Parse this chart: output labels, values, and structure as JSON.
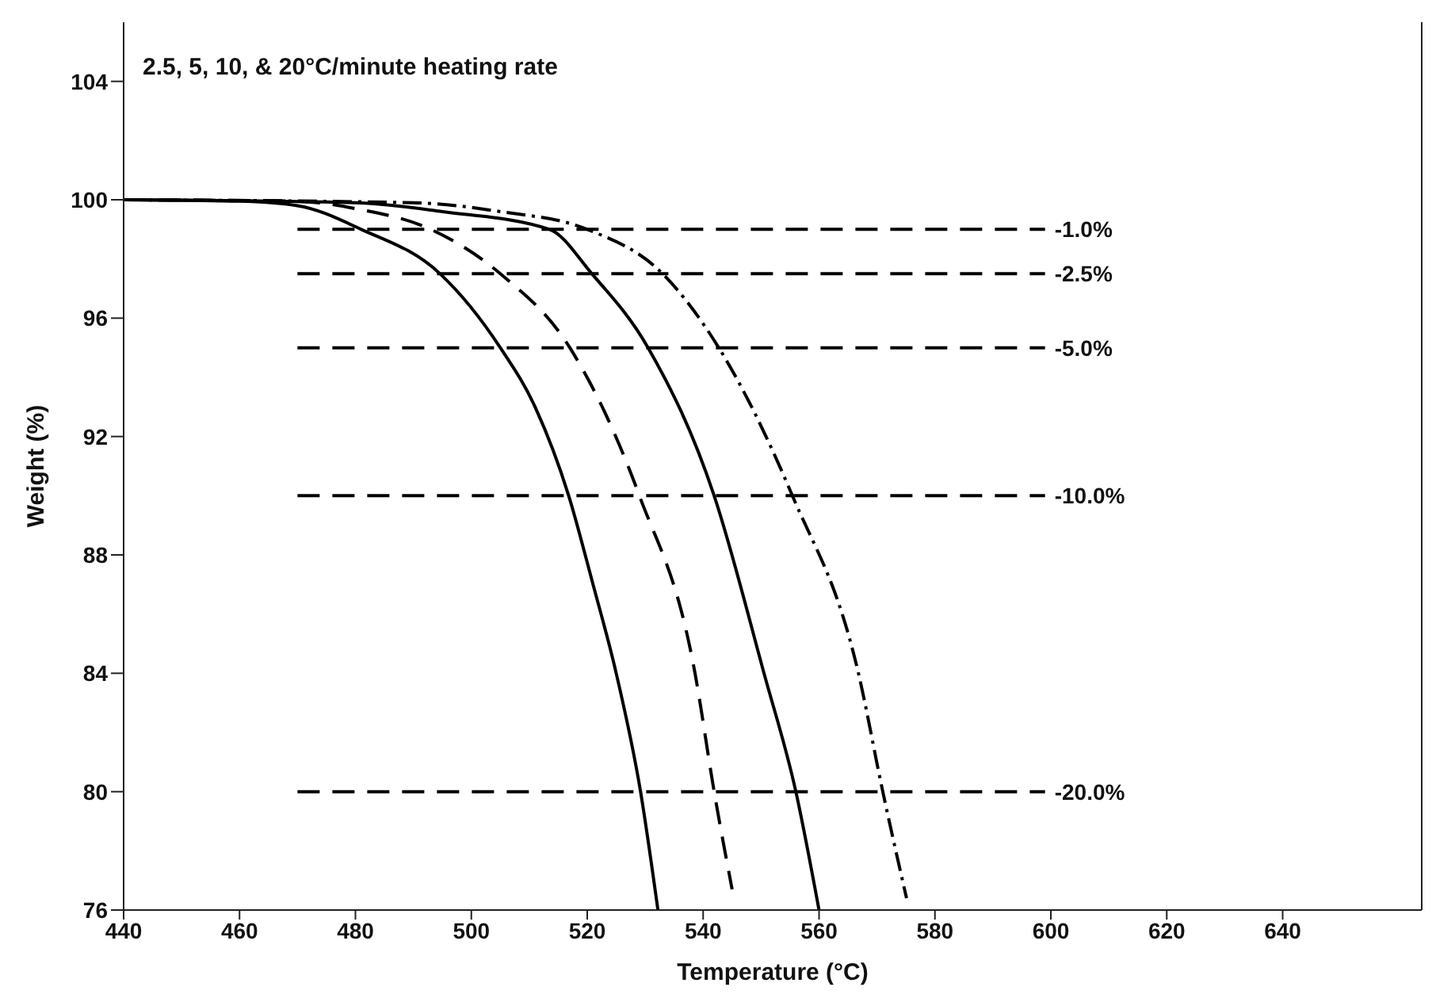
{
  "chart_data": {
    "type": "line",
    "title": "2.5, 5, 10, & 20°C/minute heating rate",
    "xlabel": "Temperature (°C)",
    "ylabel": "Weight (%)",
    "xlim": [
      440,
      664
    ],
    "xticks": [
      440,
      460,
      480,
      500,
      520,
      540,
      560,
      580,
      600,
      620,
      640
    ],
    "ylim": [
      76,
      106
    ],
    "yticks": [
      76,
      80,
      84,
      88,
      92,
      96,
      100,
      104
    ],
    "grid": false,
    "legend": false,
    "marker": "none",
    "series": [
      {
        "color": "#000000",
        "line_style": "solid",
        "x": [
          440,
          460,
          470,
          481,
          494.6,
          505,
          511,
          516.8,
          521,
          525,
          529.2,
          532.2
        ],
        "values": [
          100,
          99.95,
          99.8,
          99,
          97.5,
          95,
          93,
          90,
          87,
          84,
          80,
          76
        ]
      },
      {
        "color": "#000000",
        "line_style": "dashed",
        "x": [
          440,
          470,
          480,
          493,
          505,
          517,
          529,
          538.6,
          541.9,
          545
        ],
        "values": [
          100,
          99.95,
          99.7,
          99,
          97.5,
          95,
          90,
          84,
          80,
          76.7
        ]
      },
      {
        "color": "#000000",
        "line_style": "solid",
        "x": [
          440,
          480,
          495,
          513.5,
          520.8,
          530.5,
          541.9,
          550.5,
          556,
          560
        ],
        "values": [
          100,
          99.9,
          99.6,
          99,
          97.5,
          95,
          90,
          84,
          80,
          76
        ]
      },
      {
        "color": "#000000",
        "line_style": "dotted",
        "x": [
          440,
          490,
          505,
          520,
          533,
          542.7,
          555.4,
          566.8,
          571,
          575.1
        ],
        "values": [
          100,
          99.9,
          99.6,
          99,
          97.5,
          95,
          90,
          84,
          80,
          76.4
        ]
      },
      {
        "name": "-1.0%",
        "color": "#000000",
        "line_style": "dashed",
        "x": [
          470,
          599
        ],
        "values": [
          99,
          99
        ]
      },
      {
        "name": "-2.5%",
        "color": "#000000",
        "line_style": "dashed",
        "x": [
          470,
          599
        ],
        "values": [
          97.5,
          97.5
        ]
      },
      {
        "name": "-5.0%",
        "color": "#000000",
        "line_style": "dashed",
        "x": [
          470,
          599
        ],
        "values": [
          95,
          95
        ]
      },
      {
        "name": "-10.0%",
        "color": "#000000",
        "line_style": "dashed",
        "x": [
          470,
          599
        ],
        "values": [
          90,
          90
        ]
      },
      {
        "name": "-20.0%",
        "color": "#000000",
        "line_style": "dashed",
        "x": [
          470,
          599
        ],
        "values": [
          80,
          80
        ]
      }
    ]
  }
}
